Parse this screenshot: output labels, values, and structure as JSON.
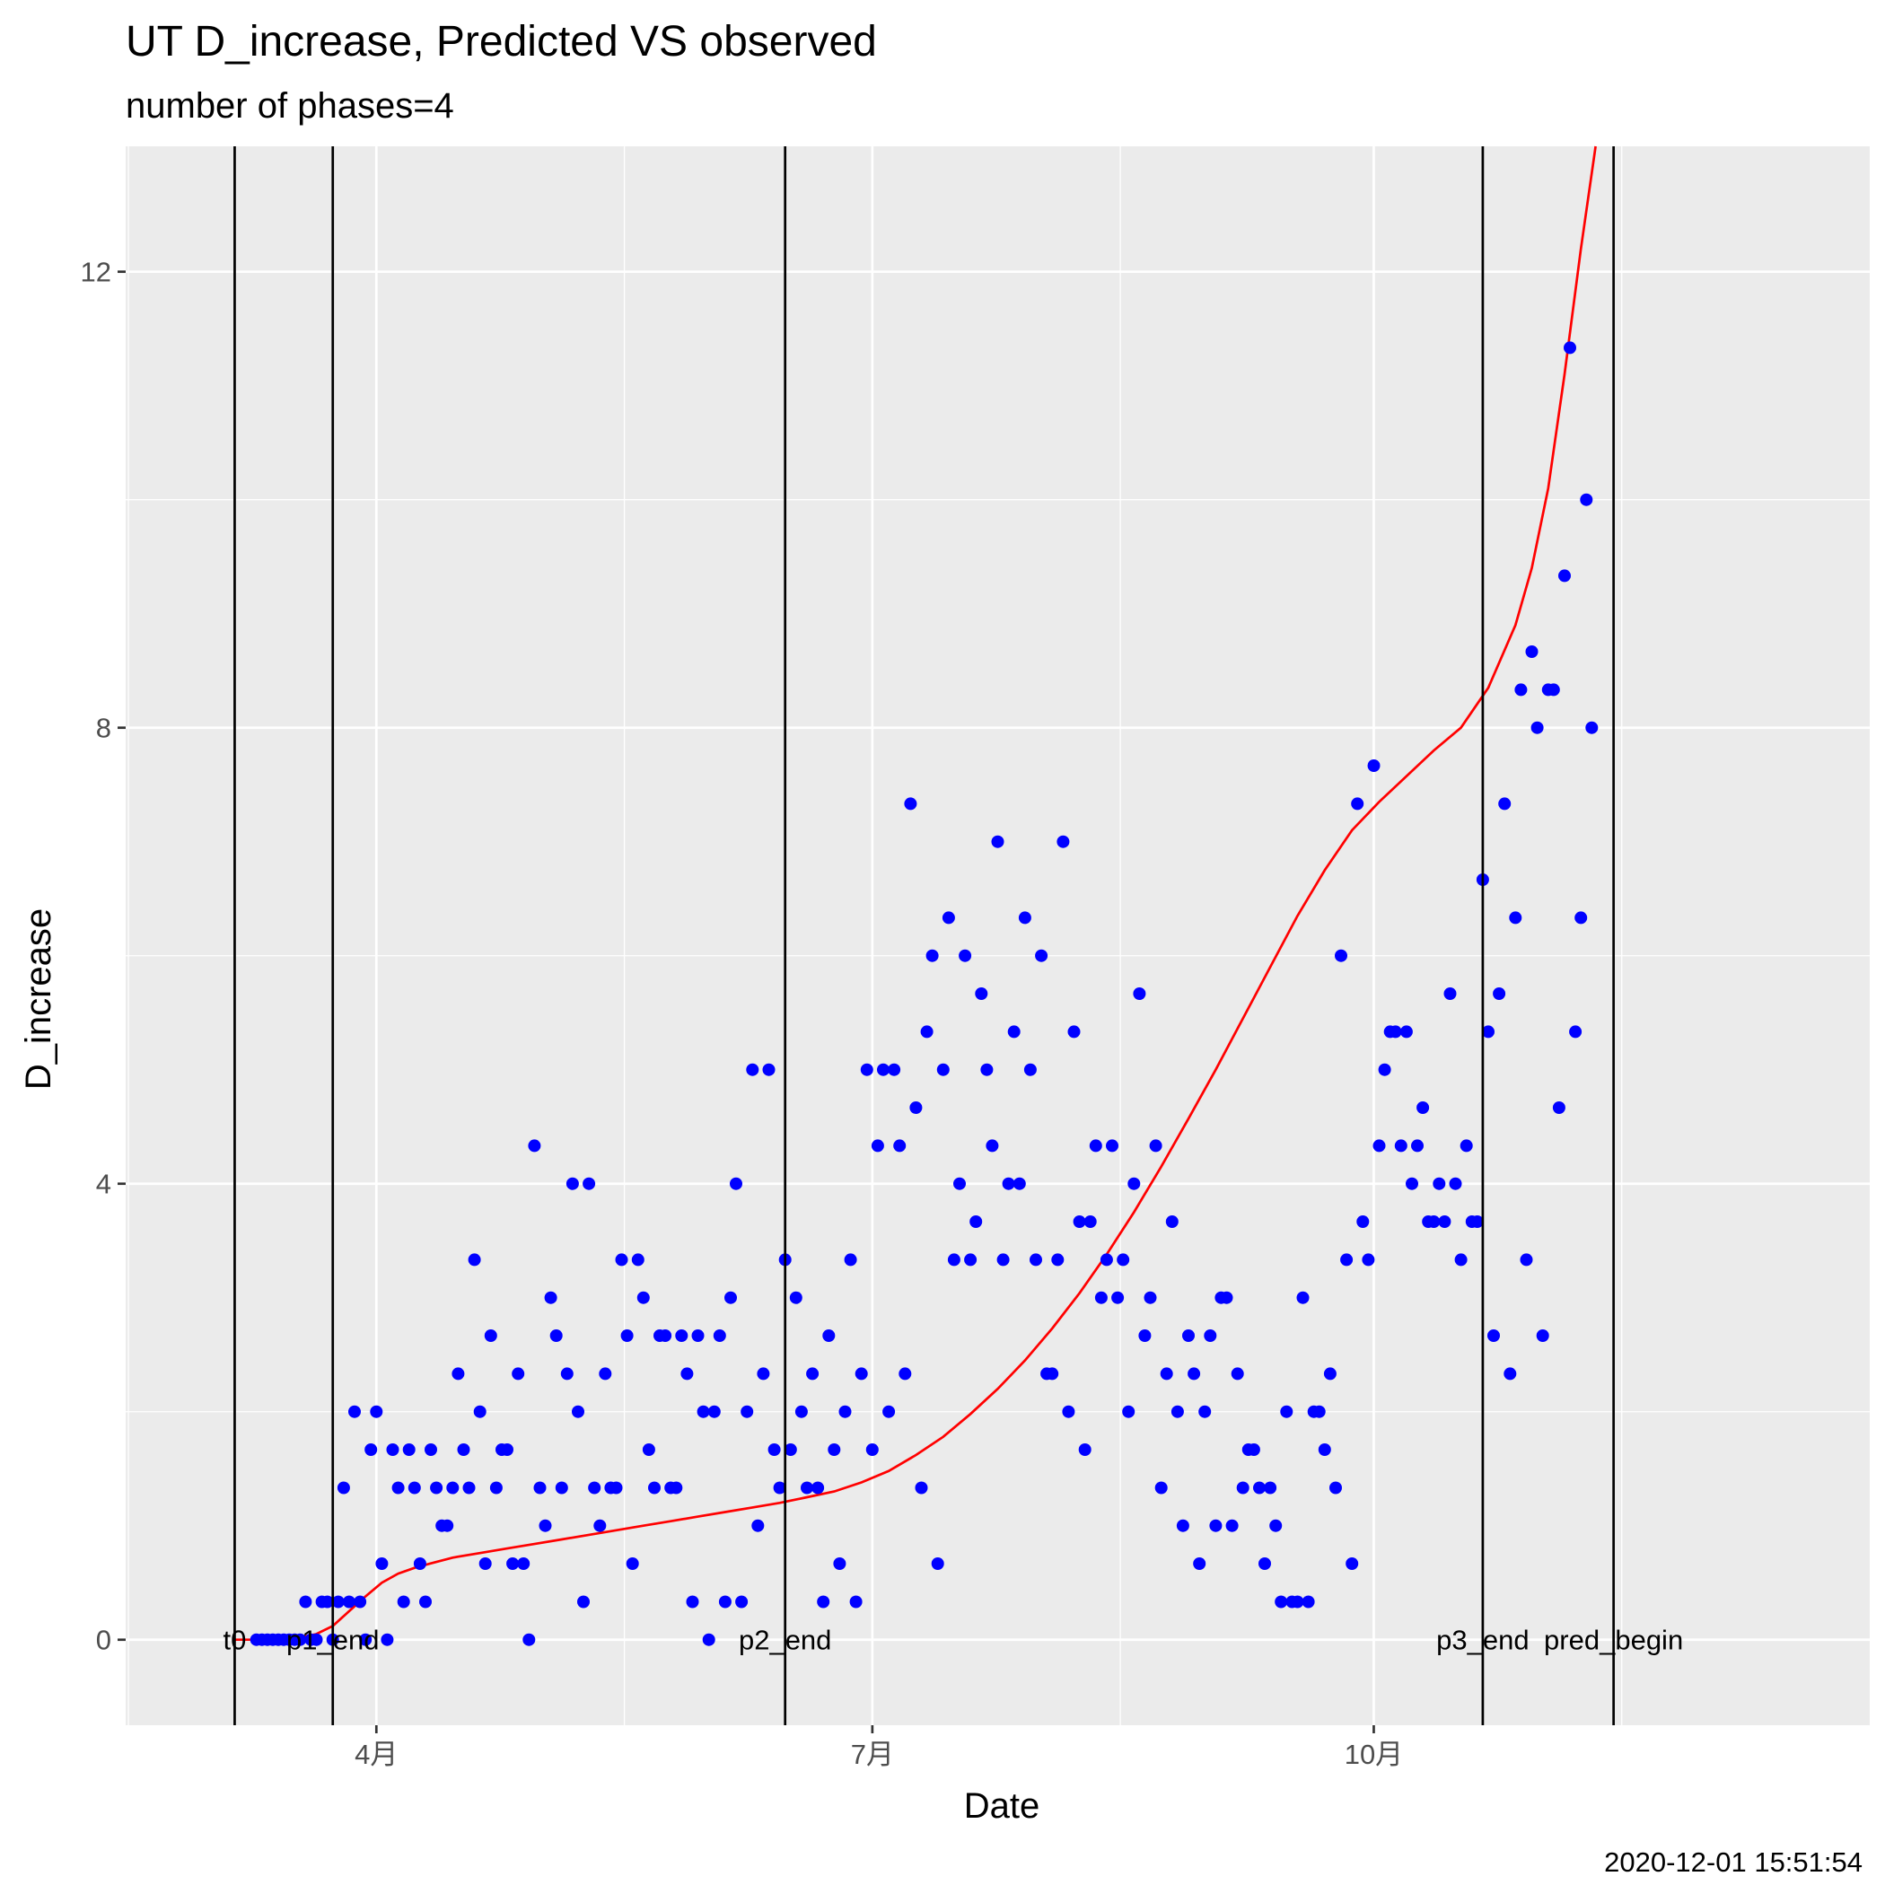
{
  "chart_data": {
    "type": "scatter",
    "title": "UT D_increase, Predicted VS observed",
    "subtitle": "number of phases=4",
    "xlabel": "Date",
    "ylabel": "D_increase",
    "caption": "2020-12-01 15:51:54",
    "x_start": "2020-02-15",
    "xlim": [
      "2020-02-15",
      "2020-12-31"
    ],
    "ylim": [
      -0.75,
      13.1
    ],
    "x_ticks": [
      {
        "date": "2020-04-01",
        "label": "4月"
      },
      {
        "date": "2020-07-01",
        "label": "7月"
      },
      {
        "date": "2020-10-01",
        "label": "10月"
      }
    ],
    "y_ticks": [
      0,
      4,
      8,
      12
    ],
    "phase_lines": [
      {
        "date": "2020-03-06",
        "label": "t0"
      },
      {
        "date": "2020-03-24",
        "label": "p1_end"
      },
      {
        "date": "2020-06-15",
        "label": "p2_end"
      },
      {
        "date": "2020-10-21",
        "label": "p3_end"
      },
      {
        "date": "2020-11-14",
        "label": "pred_begin"
      }
    ],
    "series": [
      {
        "name": "observed",
        "color": "#0000ff",
        "style": "points",
        "points": [
          [
            24,
            0
          ],
          [
            25,
            0
          ],
          [
            26,
            0
          ],
          [
            27,
            0
          ],
          [
            28,
            0
          ],
          [
            29,
            0
          ],
          [
            30,
            0
          ],
          [
            31,
            0
          ],
          [
            32,
            0
          ],
          [
            33,
            0.333
          ],
          [
            34,
            0
          ],
          [
            35,
            0
          ],
          [
            36,
            0.333
          ],
          [
            37,
            0.333
          ],
          [
            38,
            0
          ],
          [
            39,
            0.333
          ],
          [
            40,
            1.333
          ],
          [
            41,
            0.333
          ],
          [
            42,
            2
          ],
          [
            43,
            0.333
          ],
          [
            44,
            0
          ],
          [
            45,
            1.667
          ],
          [
            46,
            2
          ],
          [
            47,
            0.667
          ],
          [
            48,
            0
          ],
          [
            49,
            1.667
          ],
          [
            50,
            1.333
          ],
          [
            51,
            0.333
          ],
          [
            52,
            1.667
          ],
          [
            53,
            1.333
          ],
          [
            54,
            0.667
          ],
          [
            55,
            0.333
          ],
          [
            56,
            1.667
          ],
          [
            57,
            1.333
          ],
          [
            58,
            1
          ],
          [
            59,
            1
          ],
          [
            60,
            1.333
          ],
          [
            61,
            2.333
          ],
          [
            62,
            1.667
          ],
          [
            63,
            1.333
          ],
          [
            64,
            3.333
          ],
          [
            65,
            2
          ],
          [
            66,
            0.667
          ],
          [
            67,
            2.667
          ],
          [
            68,
            1.333
          ],
          [
            69,
            1.667
          ],
          [
            70,
            1.667
          ],
          [
            71,
            0.667
          ],
          [
            72,
            2.333
          ],
          [
            73,
            0.667
          ],
          [
            74,
            0
          ],
          [
            75,
            4.333
          ],
          [
            76,
            1.333
          ],
          [
            77,
            1
          ],
          [
            78,
            3
          ],
          [
            79,
            2.667
          ],
          [
            80,
            1.333
          ],
          [
            81,
            2.333
          ],
          [
            82,
            4
          ],
          [
            83,
            2
          ],
          [
            84,
            0.333
          ],
          [
            85,
            4
          ],
          [
            86,
            1.333
          ],
          [
            87,
            1
          ],
          [
            88,
            2.333
          ],
          [
            89,
            1.333
          ],
          [
            90,
            1.333
          ],
          [
            91,
            3.333
          ],
          [
            92,
            2.667
          ],
          [
            93,
            0.667
          ],
          [
            94,
            3.333
          ],
          [
            95,
            3
          ],
          [
            96,
            1.667
          ],
          [
            97,
            1.333
          ],
          [
            98,
            2.667
          ],
          [
            99,
            2.667
          ],
          [
            100,
            1.333
          ],
          [
            101,
            1.333
          ],
          [
            102,
            2.667
          ],
          [
            103,
            2.333
          ],
          [
            104,
            0.333
          ],
          [
            105,
            2.667
          ],
          [
            106,
            2
          ],
          [
            107,
            0
          ],
          [
            108,
            2
          ],
          [
            109,
            2.667
          ],
          [
            110,
            0.333
          ],
          [
            111,
            3
          ],
          [
            112,
            4
          ],
          [
            113,
            0.333
          ],
          [
            114,
            2
          ],
          [
            115,
            5
          ],
          [
            116,
            1
          ],
          [
            117,
            2.333
          ],
          [
            118,
            5
          ],
          [
            119,
            1.667
          ],
          [
            120,
            1.333
          ],
          [
            121,
            3.333
          ],
          [
            122,
            1.667
          ],
          [
            123,
            3
          ],
          [
            124,
            2
          ],
          [
            125,
            1.333
          ],
          [
            126,
            2.333
          ],
          [
            127,
            1.333
          ],
          [
            128,
            0.333
          ],
          [
            129,
            2.667
          ],
          [
            130,
            1.667
          ],
          [
            131,
            0.667
          ],
          [
            132,
            2
          ],
          [
            133,
            3.333
          ],
          [
            134,
            0.333
          ],
          [
            135,
            2.333
          ],
          [
            136,
            5
          ],
          [
            137,
            1.667
          ],
          [
            138,
            4.333
          ],
          [
            139,
            5
          ],
          [
            140,
            2
          ],
          [
            141,
            5
          ],
          [
            142,
            4.333
          ],
          [
            143,
            2.333
          ],
          [
            144,
            7.333
          ],
          [
            145,
            4.667
          ],
          [
            146,
            1.333
          ],
          [
            147,
            5.333
          ],
          [
            148,
            6
          ],
          [
            149,
            0.667
          ],
          [
            150,
            5
          ],
          [
            151,
            6.333
          ],
          [
            152,
            3.333
          ],
          [
            153,
            4
          ],
          [
            154,
            6
          ],
          [
            155,
            3.333
          ],
          [
            156,
            3.667
          ],
          [
            157,
            5.667
          ],
          [
            158,
            5
          ],
          [
            159,
            4.333
          ],
          [
            160,
            7
          ],
          [
            161,
            3.333
          ],
          [
            162,
            4
          ],
          [
            163,
            5.333
          ],
          [
            164,
            4
          ],
          [
            165,
            6.333
          ],
          [
            166,
            5
          ],
          [
            167,
            3.333
          ],
          [
            168,
            6
          ],
          [
            169,
            2.333
          ],
          [
            170,
            2.333
          ],
          [
            171,
            3.333
          ],
          [
            172,
            7
          ],
          [
            173,
            2
          ],
          [
            174,
            5.333
          ],
          [
            175,
            3.667
          ],
          [
            176,
            1.667
          ],
          [
            177,
            3.667
          ],
          [
            178,
            4.333
          ],
          [
            179,
            3
          ],
          [
            180,
            3.333
          ],
          [
            181,
            4.333
          ],
          [
            182,
            3
          ],
          [
            183,
            3.333
          ],
          [
            184,
            2
          ],
          [
            185,
            4
          ],
          [
            186,
            5.667
          ],
          [
            187,
            2.667
          ],
          [
            188,
            3
          ],
          [
            189,
            4.333
          ],
          [
            190,
            1.333
          ],
          [
            191,
            2.333
          ],
          [
            192,
            3.667
          ],
          [
            193,
            2
          ],
          [
            194,
            1
          ],
          [
            195,
            2.667
          ],
          [
            196,
            2.333
          ],
          [
            197,
            0.667
          ],
          [
            198,
            2
          ],
          [
            199,
            2.667
          ],
          [
            200,
            1
          ],
          [
            201,
            3
          ],
          [
            202,
            3
          ],
          [
            203,
            1
          ],
          [
            204,
            2.333
          ],
          [
            205,
            1.333
          ],
          [
            206,
            1.667
          ],
          [
            207,
            1.667
          ],
          [
            208,
            1.333
          ],
          [
            209,
            0.667
          ],
          [
            210,
            1.333
          ],
          [
            211,
            1
          ],
          [
            212,
            0.333
          ],
          [
            213,
            2
          ],
          [
            214,
            0.333
          ],
          [
            215,
            0.333
          ],
          [
            216,
            3
          ],
          [
            217,
            0.333
          ],
          [
            218,
            2
          ],
          [
            219,
            2
          ],
          [
            220,
            1.667
          ],
          [
            221,
            2.333
          ],
          [
            222,
            1.333
          ],
          [
            223,
            6
          ],
          [
            224,
            3.333
          ],
          [
            225,
            0.667
          ],
          [
            226,
            7.333
          ],
          [
            227,
            3.667
          ],
          [
            228,
            3.333
          ],
          [
            229,
            7.667
          ],
          [
            230,
            4.333
          ],
          [
            231,
            5
          ],
          [
            232,
            5.333
          ],
          [
            233,
            5.333
          ],
          [
            234,
            4.333
          ],
          [
            235,
            5.333
          ],
          [
            236,
            4
          ],
          [
            237,
            4.333
          ],
          [
            238,
            4.667
          ],
          [
            239,
            3.667
          ],
          [
            240,
            3.667
          ],
          [
            241,
            4
          ],
          [
            242,
            3.667
          ],
          [
            243,
            5.667
          ],
          [
            244,
            4
          ],
          [
            245,
            3.333
          ],
          [
            246,
            4.333
          ],
          [
            247,
            3.667
          ],
          [
            248,
            3.667
          ],
          [
            249,
            6.667
          ],
          [
            250,
            5.333
          ],
          [
            251,
            2.667
          ],
          [
            252,
            5.667
          ],
          [
            253,
            7.333
          ],
          [
            254,
            2.333
          ],
          [
            255,
            6.333
          ],
          [
            256,
            8.333
          ],
          [
            257,
            3.333
          ],
          [
            258,
            8.667
          ],
          [
            259,
            8
          ],
          [
            260,
            2.667
          ],
          [
            261,
            8.333
          ],
          [
            262,
            8.333
          ],
          [
            263,
            4.667
          ],
          [
            264,
            9.333
          ],
          [
            265,
            11.333
          ],
          [
            266,
            5.333
          ],
          [
            267,
            6.333
          ],
          [
            268,
            10
          ],
          [
            269,
            8
          ]
        ]
      },
      {
        "name": "predicted",
        "color": "#ff0000",
        "style": "line",
        "points": [
          [
            20,
            0
          ],
          [
            24,
            0
          ],
          [
            30,
            0
          ],
          [
            35,
            0.05
          ],
          [
            38,
            0.12
          ],
          [
            41,
            0.25
          ],
          [
            44,
            0.38
          ],
          [
            47,
            0.5
          ],
          [
            50,
            0.58
          ],
          [
            53,
            0.63
          ],
          [
            56,
            0.67
          ],
          [
            60,
            0.72
          ],
          [
            65,
            0.76
          ],
          [
            70,
            0.8
          ],
          [
            75,
            0.84
          ],
          [
            80,
            0.88
          ],
          [
            85,
            0.92
          ],
          [
            90,
            0.96
          ],
          [
            95,
            1.0
          ],
          [
            100,
            1.04
          ],
          [
            105,
            1.08
          ],
          [
            110,
            1.12
          ],
          [
            115,
            1.16
          ],
          [
            120,
            1.2
          ],
          [
            125,
            1.25
          ],
          [
            130,
            1.3
          ],
          [
            135,
            1.38
          ],
          [
            140,
            1.48
          ],
          [
            145,
            1.62
          ],
          [
            150,
            1.78
          ],
          [
            155,
            1.98
          ],
          [
            160,
            2.2
          ],
          [
            165,
            2.45
          ],
          [
            170,
            2.73
          ],
          [
            175,
            3.04
          ],
          [
            180,
            3.38
          ],
          [
            185,
            3.75
          ],
          [
            190,
            4.15
          ],
          [
            195,
            4.57
          ],
          [
            200,
            5.0
          ],
          [
            205,
            5.45
          ],
          [
            210,
            5.9
          ],
          [
            215,
            6.35
          ],
          [
            220,
            6.75
          ],
          [
            225,
            7.1
          ],
          [
            230,
            7.35
          ],
          [
            240,
            7.8
          ],
          [
            245,
            8.0
          ],
          [
            250,
            8.35
          ],
          [
            255,
            8.9
          ],
          [
            258,
            9.4
          ],
          [
            261,
            10.1
          ],
          [
            264,
            11.1
          ],
          [
            267,
            12.2
          ],
          [
            270,
            13.2
          ]
        ]
      }
    ]
  }
}
